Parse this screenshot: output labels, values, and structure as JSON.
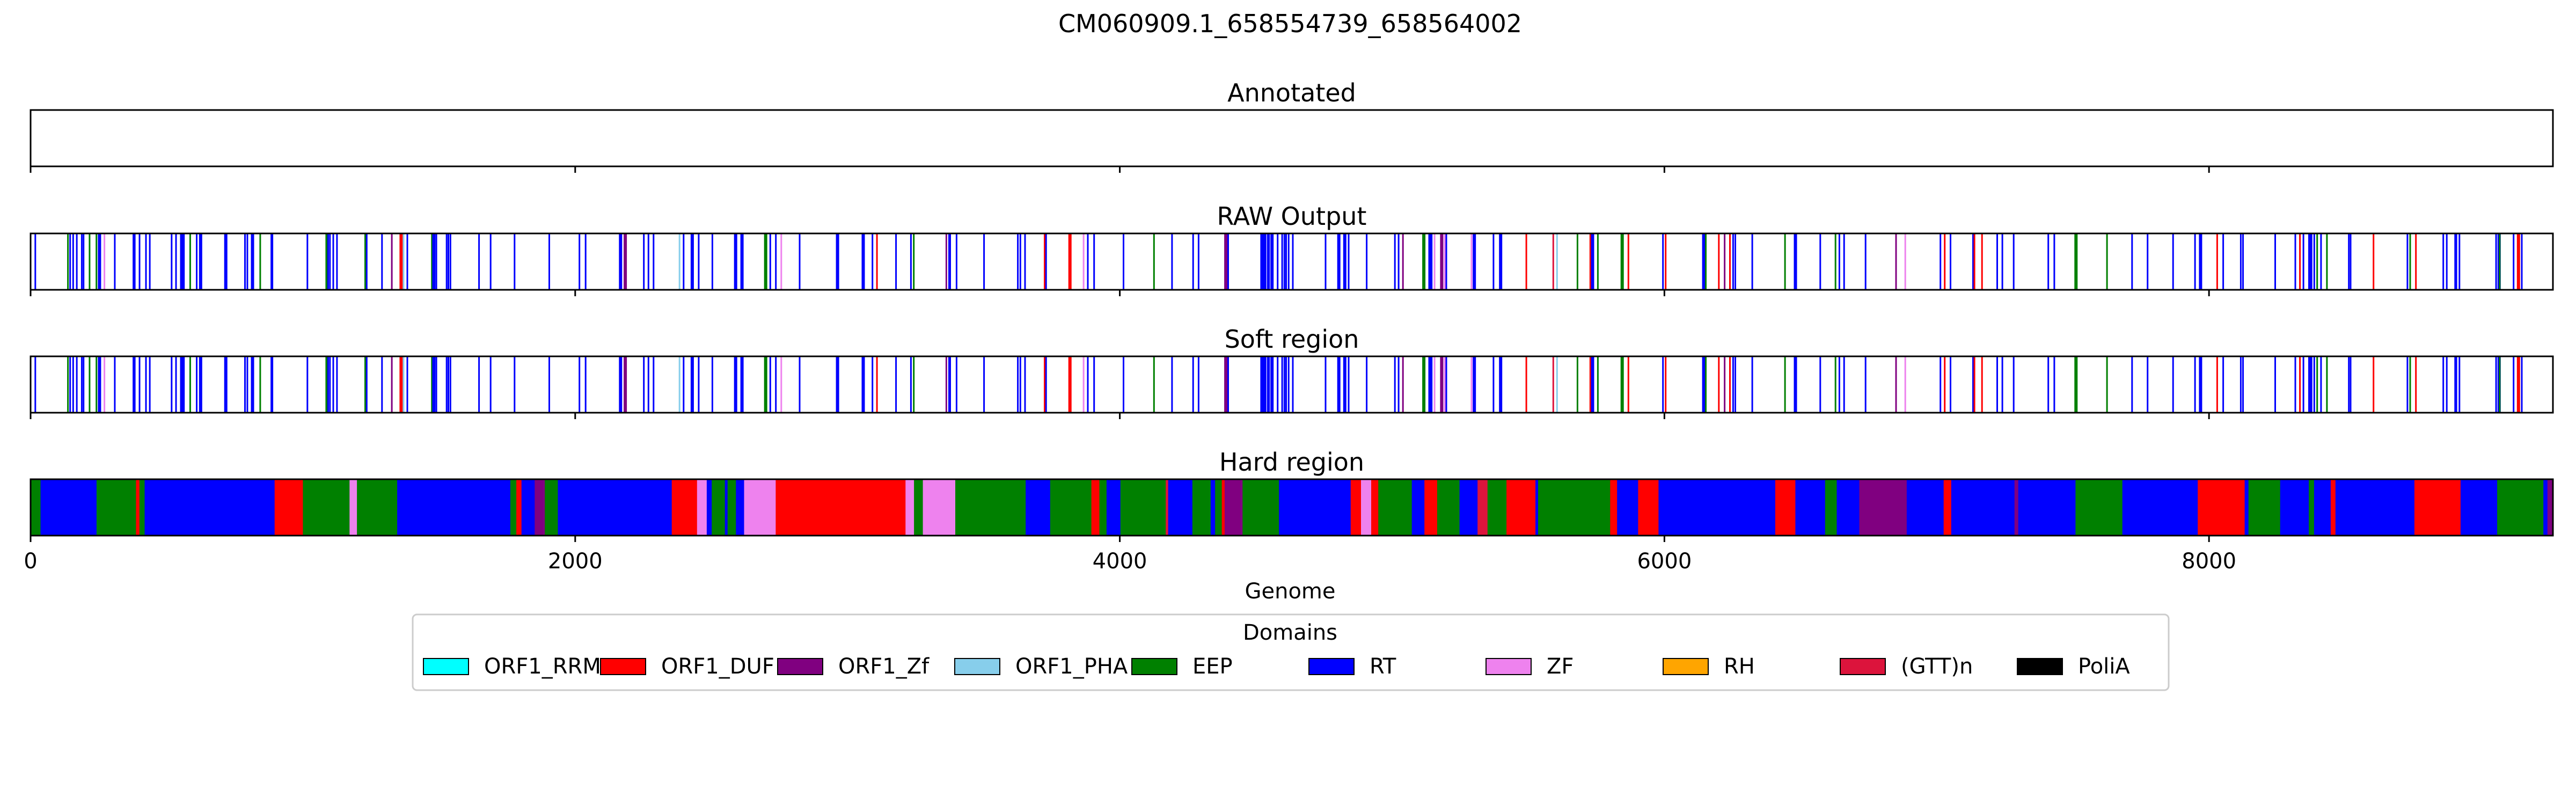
{
  "chart_data": {
    "type": "track",
    "title": "CM060909.1_658554739_658564002",
    "xlabel": "Genome",
    "xlim": [
      0,
      9263
    ],
    "x_ticks": [
      "0",
      "2000",
      "4000",
      "6000",
      "8000"
    ],
    "x_tick_values": [
      0,
      2000,
      4000,
      6000,
      8000
    ],
    "panels": [
      {
        "title": "Annotated",
        "mode": "empty"
      },
      {
        "title": "RAW Output",
        "mode": "sparse",
        "seed": 11
      },
      {
        "title": "Soft region",
        "mode": "sparse",
        "seed": 11
      },
      {
        "title": "Hard region",
        "mode": "dense",
        "seed": 29
      }
    ],
    "legend": {
      "title": "Domains",
      "placement": "lower-center",
      "entries": [
        {
          "label": "ORF1_RRM",
          "color": "#00FFFF"
        },
        {
          "label": "ORF1_DUF",
          "color": "#FF0000"
        },
        {
          "label": "ORF1_Zf",
          "color": "#800080"
        },
        {
          "label": "ORF1_PHA",
          "color": "#87CEEB"
        },
        {
          "label": "EEP",
          "color": "#008000"
        },
        {
          "label": "RT",
          "color": "#0000FF"
        },
        {
          "label": "ZF",
          "color": "#EE82EE"
        },
        {
          "label": "RH",
          "color": "#FFA500"
        },
        {
          "label": "(GTT)n",
          "color": "#DC143C"
        },
        {
          "label": "PoliA",
          "color": "#000000"
        }
      ]
    }
  }
}
